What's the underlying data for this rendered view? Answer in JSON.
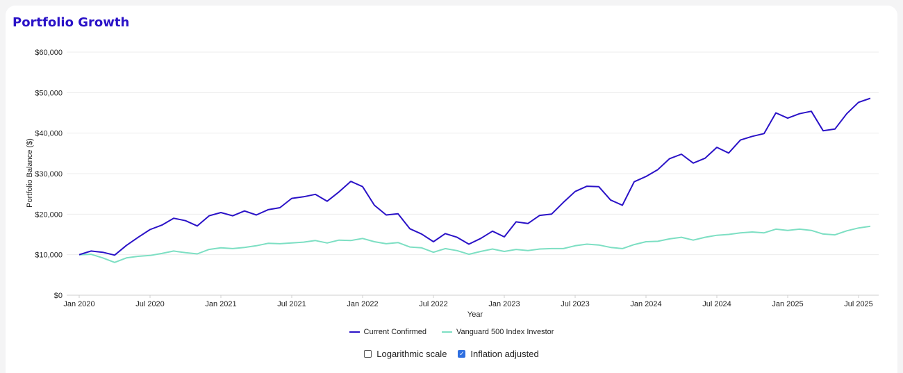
{
  "title": "Portfolio Growth",
  "chart_data": {
    "type": "line",
    "xlabel": "Year",
    "ylabel": "Portfolio Balance ($)",
    "ylim": [
      0,
      60000
    ],
    "y_ticks": [
      "$0",
      "$10,000",
      "$20,000",
      "$30,000",
      "$40,000",
      "$50,000",
      "$60,000"
    ],
    "x_ticks": [
      "Jan 2020",
      "Jul 2020",
      "Jan 2021",
      "Jul 2021",
      "Jan 2022",
      "Jul 2022",
      "Jan 2023",
      "Jul 2023",
      "Jan 2024",
      "Jul 2024",
      "Jan 2025",
      "Jul 2025"
    ],
    "x": [
      "Jan 2020",
      "Feb 2020",
      "Mar 2020",
      "Apr 2020",
      "May 2020",
      "Jun 2020",
      "Jul 2020",
      "Aug 2020",
      "Sep 2020",
      "Oct 2020",
      "Nov 2020",
      "Dec 2020",
      "Jan 2021",
      "Feb 2021",
      "Mar 2021",
      "Apr 2021",
      "May 2021",
      "Jun 2021",
      "Jul 2021",
      "Aug 2021",
      "Sep 2021",
      "Oct 2021",
      "Nov 2021",
      "Dec 2021",
      "Jan 2022",
      "Feb 2022",
      "Mar 2022",
      "Apr 2022",
      "May 2022",
      "Jun 2022",
      "Jul 2022",
      "Aug 2022",
      "Sep 2022",
      "Oct 2022",
      "Nov 2022",
      "Dec 2022",
      "Jan 2023",
      "Feb 2023",
      "Mar 2023",
      "Apr 2023",
      "May 2023",
      "Jun 2023",
      "Jul 2023",
      "Aug 2023",
      "Sep 2023",
      "Oct 2023",
      "Nov 2023",
      "Dec 2023",
      "Jan 2024",
      "Feb 2024",
      "Mar 2024",
      "Apr 2024",
      "May 2024",
      "Jun 2024",
      "Jul 2024",
      "Aug 2024",
      "Sep 2024",
      "Oct 2024",
      "Nov 2024",
      "Dec 2024",
      "Jan 2025",
      "Feb 2025",
      "Mar 2025",
      "Apr 2025",
      "May 2025",
      "Jun 2025",
      "Jul 2025",
      "Aug 2025"
    ],
    "grid": true,
    "legend_position": "bottom-center",
    "series": [
      {
        "name": "Current Confirmed",
        "color": "#2a12c7",
        "values": [
          10000,
          10900,
          10600,
          9900,
          12300,
          14300,
          16200,
          17300,
          19000,
          18400,
          17100,
          19600,
          20400,
          19600,
          20800,
          19800,
          21100,
          21600,
          23900,
          24300,
          24900,
          23200,
          25500,
          28100,
          26800,
          22200,
          19800,
          20100,
          16400,
          15100,
          13200,
          15200,
          14300,
          12600,
          14000,
          15800,
          14400,
          18100,
          17700,
          19700,
          20000,
          22900,
          25600,
          26900,
          26800,
          23500,
          22200,
          28000,
          29300,
          31000,
          33700,
          34800,
          32600,
          33800,
          36500,
          35100,
          38300,
          39200,
          39900,
          45000,
          43700,
          44800,
          45400,
          40600,
          41000,
          44800,
          47600,
          48600
        ]
      },
      {
        "name": "Vanguard 500 Index Investor",
        "color": "#7ddfc3",
        "values": [
          10000,
          10100,
          9200,
          8100,
          9200,
          9600,
          9800,
          10300,
          10900,
          10500,
          10200,
          11300,
          11700,
          11500,
          11800,
          12200,
          12800,
          12700,
          12900,
          13100,
          13500,
          12900,
          13600,
          13500,
          14000,
          13200,
          12700,
          13000,
          11900,
          11700,
          10600,
          11500,
          11000,
          10100,
          10800,
          11400,
          10800,
          11300,
          11000,
          11400,
          11500,
          11500,
          12200,
          12600,
          12400,
          11800,
          11500,
          12500,
          13200,
          13300,
          13900,
          14300,
          13600,
          14300,
          14800,
          15000,
          15400,
          15600,
          15400,
          16300,
          16000,
          16300,
          16000,
          15100,
          14900,
          15900,
          16600,
          17000
        ]
      }
    ]
  },
  "controls": {
    "log_scale_label": "Logarithmic scale",
    "log_scale_checked": false,
    "inflation_label": "Inflation adjusted",
    "inflation_checked": true
  }
}
